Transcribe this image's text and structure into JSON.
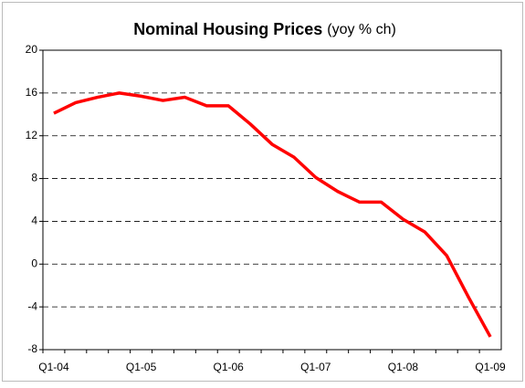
{
  "chart_data": {
    "type": "line",
    "title": "Nominal Housing Prices",
    "subtitle": "(yoy % ch)",
    "categories": [
      "Q1-04",
      null,
      null,
      null,
      "Q1-05",
      null,
      null,
      null,
      "Q1-06",
      null,
      null,
      null,
      "Q1-07",
      null,
      null,
      null,
      "Q1-08",
      null,
      null,
      null,
      "Q1-09"
    ],
    "series": [
      {
        "name": "Nominal Housing Prices",
        "color": "#ff0000",
        "values": [
          14.1,
          15.1,
          15.6,
          16.0,
          15.7,
          15.3,
          15.6,
          14.8,
          14.8,
          13.1,
          11.2,
          10.0,
          8.1,
          6.8,
          5.8,
          5.8,
          4.2,
          3.0,
          0.8,
          -3.1,
          -6.8
        ]
      }
    ],
    "ylim": [
      -8,
      20
    ],
    "yticks": [
      -8,
      -4,
      0,
      4,
      8,
      12,
      16,
      20
    ],
    "grid": true
  }
}
